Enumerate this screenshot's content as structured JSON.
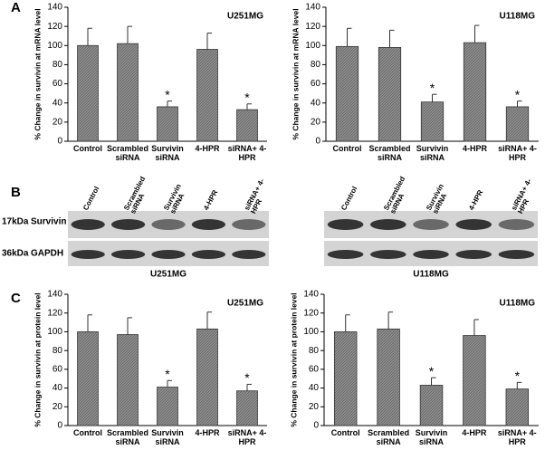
{
  "panels": [
    "A",
    "B",
    "C"
  ],
  "blot": {
    "lanes": [
      "Control",
      "Scrambled siRNA",
      "Survivin siRNA",
      "4-HPR",
      "siRNA+ 4-HPR"
    ],
    "rows": [
      {
        "size": "17kDa",
        "protein": "Survivin"
      },
      {
        "size": "36kDa",
        "protein": "GAPDH"
      }
    ],
    "cell_lines": [
      "U251MG",
      "U118MG"
    ]
  },
  "chart_data": [
    {
      "type": "bar",
      "title": "U251MG",
      "y_label": "% Change in survivin at mRNA level",
      "categories": [
        "Control",
        "Scrambled siRNA",
        "Survivin siRNA",
        "4-HPR",
        "siRNA+ 4-HPR"
      ],
      "values": [
        100,
        102,
        36,
        96,
        33
      ],
      "errors": [
        18,
        18,
        6,
        17,
        6
      ],
      "markers": [
        null,
        null,
        "*",
        null,
        "*"
      ],
      "color": "#8e8e8e",
      "ylim": [
        0,
        140
      ],
      "yticks": [
        0,
        20,
        40,
        60,
        80,
        100,
        120,
        140
      ]
    },
    {
      "type": "bar",
      "title": "U118MG",
      "y_label": "% Change in survivin at mRNA level",
      "categories": [
        "Control",
        "Scrambled siRNA",
        "Survivin siRNA",
        "4-HPR",
        "siRNA+ 4-HPR"
      ],
      "values": [
        99,
        98,
        41,
        103,
        36
      ],
      "errors": [
        19,
        18,
        8,
        18,
        6
      ],
      "markers": [
        null,
        null,
        "*",
        null,
        "*"
      ],
      "color": "#8e8e8e",
      "ylim": [
        0,
        140
      ],
      "yticks": [
        0,
        20,
        40,
        60,
        80,
        100,
        120,
        140
      ]
    },
    {
      "type": "bar",
      "title": "U251MG",
      "y_label": "% Change in survivin at protein level",
      "categories": [
        "Control",
        "Scrambled siRNA",
        "Survivin siRNA",
        "4-HPR",
        "siRNA+ 4-HPR"
      ],
      "values": [
        100,
        97,
        41,
        103,
        37
      ],
      "errors": [
        18,
        18,
        7,
        18,
        7
      ],
      "markers": [
        null,
        null,
        "*",
        null,
        "*"
      ],
      "color": "#8e8e8e",
      "ylim": [
        0,
        140
      ],
      "yticks": [
        0,
        20,
        40,
        60,
        80,
        100,
        120,
        140
      ]
    },
    {
      "type": "bar",
      "title": "U118MG",
      "y_label": "% Change in survivin at protein level",
      "categories": [
        "Control",
        "Scrambled siRNA",
        "Survivin siRNA",
        "4-HPR",
        "siRNA+ 4-HPR"
      ],
      "values": [
        100,
        103,
        43,
        96,
        39
      ],
      "errors": [
        18,
        18,
        8,
        17,
        7
      ],
      "markers": [
        null,
        null,
        "*",
        null,
        "*"
      ],
      "color": "#8e8e8e",
      "ylim": [
        0,
        140
      ],
      "yticks": [
        0,
        20,
        40,
        60,
        80,
        100,
        120,
        140
      ]
    }
  ]
}
